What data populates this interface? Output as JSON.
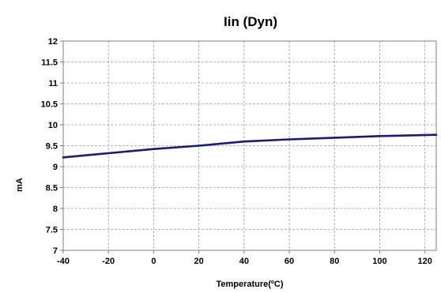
{
  "chart_data": {
    "type": "line",
    "title": "Iin (Dyn)",
    "xlabel": "Temperature(ºC)",
    "ylabel": "mA",
    "xlim": [
      -40,
      125
    ],
    "ylim": [
      7,
      12
    ],
    "x_ticks": [
      "-40",
      "-20",
      "0",
      "20",
      "40",
      "60",
      "80",
      "100",
      "120"
    ],
    "y_ticks": [
      "7",
      "7.5",
      "8",
      "8.5",
      "9",
      "9.5",
      "10",
      "10.5",
      "11",
      "11.5",
      "12"
    ],
    "grid": true,
    "line_color": "#1a1a7a",
    "series": [
      {
        "x": [
          -40,
          -20,
          0,
          20,
          40,
          60,
          80,
          100,
          125
        ],
        "values": [
          9.22,
          9.32,
          9.42,
          9.5,
          9.6,
          9.65,
          9.69,
          9.73,
          9.76
        ]
      }
    ]
  }
}
